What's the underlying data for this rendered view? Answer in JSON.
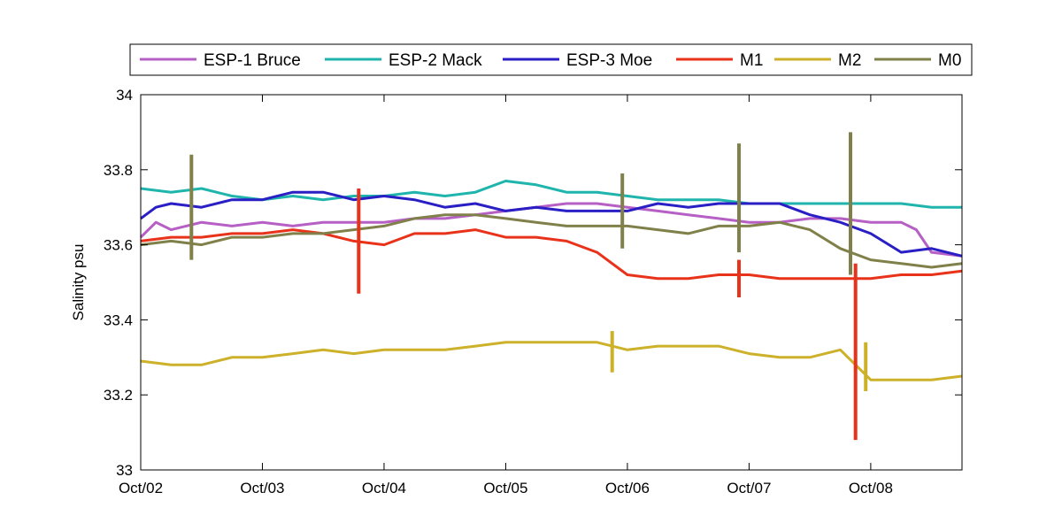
{
  "chart_data": {
    "type": "line",
    "title": "",
    "xlabel": "",
    "ylabel": "Salinity psu",
    "ylim": [
      33,
      34
    ],
    "yticks": [
      33,
      33.2,
      33.4,
      33.6,
      33.8,
      34
    ],
    "ytick_labels": [
      "33",
      "33.2",
      "33.4",
      "33.6",
      "33.8",
      "34"
    ],
    "xlim": [
      "2000-10-02T00:00",
      "2000-10-08T18:00"
    ],
    "xtick_labels": [
      "Oct/02",
      "Oct/03",
      "Oct/04",
      "Oct/05",
      "Oct/06",
      "Oct/07",
      "Oct/08"
    ],
    "grid": false,
    "legend_position": "top, outside plot",
    "series": [
      {
        "name": "ESP-1 Bruce",
        "color": "#b65fc4",
        "points": [
          [
            "10-02 00:00",
            33.62
          ],
          [
            "10-02 03:00",
            33.66
          ],
          [
            "10-02 06:00",
            33.64
          ],
          [
            "10-02 12:00",
            33.66
          ],
          [
            "10-02 18:00",
            33.65
          ],
          [
            "10-03 00:00",
            33.66
          ],
          [
            "10-03 06:00",
            33.65
          ],
          [
            "10-03 12:00",
            33.66
          ],
          [
            "10-03 18:00",
            33.66
          ],
          [
            "10-04 00:00",
            33.66
          ],
          [
            "10-04 06:00",
            33.67
          ],
          [
            "10-04 12:00",
            33.67
          ],
          [
            "10-04 18:00",
            33.68
          ],
          [
            "10-05 00:00",
            33.69
          ],
          [
            "10-05 06:00",
            33.7
          ],
          [
            "10-05 12:00",
            33.71
          ],
          [
            "10-05 18:00",
            33.71
          ],
          [
            "10-06 00:00",
            33.7
          ],
          [
            "10-06 06:00",
            33.69
          ],
          [
            "10-06 12:00",
            33.68
          ],
          [
            "10-06 18:00",
            33.67
          ],
          [
            "10-07 00:00",
            33.66
          ],
          [
            "10-07 06:00",
            33.66
          ],
          [
            "10-07 12:00",
            33.67
          ],
          [
            "10-07 18:00",
            33.67
          ],
          [
            "10-08 00:00",
            33.66
          ],
          [
            "10-08 06:00",
            33.66
          ],
          [
            "10-08 09:00",
            33.64
          ],
          [
            "10-08 12:00",
            33.58
          ],
          [
            "10-08 18:00",
            33.57
          ]
        ]
      },
      {
        "name": "ESP-2 Mack",
        "color": "#1fb5ad",
        "points": [
          [
            "10-02 00:00",
            33.75
          ],
          [
            "10-02 06:00",
            33.74
          ],
          [
            "10-02 12:00",
            33.75
          ],
          [
            "10-02 18:00",
            33.73
          ],
          [
            "10-03 00:00",
            33.72
          ],
          [
            "10-03 06:00",
            33.73
          ],
          [
            "10-03 12:00",
            33.72
          ],
          [
            "10-03 18:00",
            33.73
          ],
          [
            "10-04 00:00",
            33.73
          ],
          [
            "10-04 06:00",
            33.74
          ],
          [
            "10-04 12:00",
            33.73
          ],
          [
            "10-04 18:00",
            33.74
          ],
          [
            "10-05 00:00",
            33.77
          ],
          [
            "10-05 06:00",
            33.76
          ],
          [
            "10-05 12:00",
            33.74
          ],
          [
            "10-05 18:00",
            33.74
          ],
          [
            "10-06 00:00",
            33.73
          ],
          [
            "10-06 06:00",
            33.72
          ],
          [
            "10-06 12:00",
            33.72
          ],
          [
            "10-06 18:00",
            33.72
          ],
          [
            "10-07 00:00",
            33.71
          ],
          [
            "10-07 06:00",
            33.71
          ],
          [
            "10-07 12:00",
            33.71
          ],
          [
            "10-07 18:00",
            33.71
          ],
          [
            "10-08 00:00",
            33.71
          ],
          [
            "10-08 06:00",
            33.71
          ],
          [
            "10-08 12:00",
            33.7
          ],
          [
            "10-08 18:00",
            33.7
          ]
        ]
      },
      {
        "name": "ESP-3 Moe",
        "color": "#2a1fc4",
        "points": [
          [
            "10-02 00:00",
            33.67
          ],
          [
            "10-02 03:00",
            33.7
          ],
          [
            "10-02 06:00",
            33.71
          ],
          [
            "10-02 12:00",
            33.7
          ],
          [
            "10-02 18:00",
            33.72
          ],
          [
            "10-03 00:00",
            33.72
          ],
          [
            "10-03 06:00",
            33.74
          ],
          [
            "10-03 12:00",
            33.74
          ],
          [
            "10-03 18:00",
            33.72
          ],
          [
            "10-04 00:00",
            33.73
          ],
          [
            "10-04 06:00",
            33.72
          ],
          [
            "10-04 12:00",
            33.7
          ],
          [
            "10-04 18:00",
            33.71
          ],
          [
            "10-05 00:00",
            33.69
          ],
          [
            "10-05 06:00",
            33.7
          ],
          [
            "10-05 12:00",
            33.69
          ],
          [
            "10-05 18:00",
            33.69
          ],
          [
            "10-06 00:00",
            33.69
          ],
          [
            "10-06 06:00",
            33.71
          ],
          [
            "10-06 12:00",
            33.7
          ],
          [
            "10-06 18:00",
            33.71
          ],
          [
            "10-07 00:00",
            33.71
          ],
          [
            "10-07 06:00",
            33.71
          ],
          [
            "10-07 12:00",
            33.68
          ],
          [
            "10-07 18:00",
            33.66
          ],
          [
            "10-08 00:00",
            33.63
          ],
          [
            "10-08 06:00",
            33.58
          ],
          [
            "10-08 12:00",
            33.59
          ],
          [
            "10-08 18:00",
            33.57
          ]
        ]
      },
      {
        "name": "M1",
        "color": "#e8321a",
        "points": [
          [
            "10-02 00:00",
            33.61
          ],
          [
            "10-02 06:00",
            33.62
          ],
          [
            "10-02 12:00",
            33.62
          ],
          [
            "10-02 18:00",
            33.63
          ],
          [
            "10-03 00:00",
            33.63
          ],
          [
            "10-03 06:00",
            33.64
          ],
          [
            "10-03 12:00",
            33.63
          ],
          [
            "10-03 18:00",
            33.61
          ],
          [
            "10-04 00:00",
            33.6
          ],
          [
            "10-04 06:00",
            33.63
          ],
          [
            "10-04 12:00",
            33.63
          ],
          [
            "10-04 18:00",
            33.64
          ],
          [
            "10-05 00:00",
            33.62
          ],
          [
            "10-05 06:00",
            33.62
          ],
          [
            "10-05 12:00",
            33.61
          ],
          [
            "10-05 18:00",
            33.58
          ],
          [
            "10-06 00:00",
            33.52
          ],
          [
            "10-06 06:00",
            33.51
          ],
          [
            "10-06 12:00",
            33.51
          ],
          [
            "10-06 18:00",
            33.52
          ],
          [
            "10-07 00:00",
            33.52
          ],
          [
            "10-07 06:00",
            33.51
          ],
          [
            "10-07 12:00",
            33.51
          ],
          [
            "10-07 18:00",
            33.51
          ],
          [
            "10-08 00:00",
            33.51
          ],
          [
            "10-08 06:00",
            33.52
          ],
          [
            "10-08 12:00",
            33.52
          ],
          [
            "10-08 18:00",
            33.53
          ]
        ]
      },
      {
        "name": "M2",
        "color": "#cdb12a",
        "points": [
          [
            "10-02 00:00",
            33.29
          ],
          [
            "10-02 06:00",
            33.28
          ],
          [
            "10-02 12:00",
            33.28
          ],
          [
            "10-02 18:00",
            33.3
          ],
          [
            "10-03 00:00",
            33.3
          ],
          [
            "10-03 06:00",
            33.31
          ],
          [
            "10-03 12:00",
            33.32
          ],
          [
            "10-03 18:00",
            33.31
          ],
          [
            "10-04 00:00",
            33.32
          ],
          [
            "10-04 06:00",
            33.32
          ],
          [
            "10-04 12:00",
            33.32
          ],
          [
            "10-04 18:00",
            33.33
          ],
          [
            "10-05 00:00",
            33.34
          ],
          [
            "10-05 06:00",
            33.34
          ],
          [
            "10-05 12:00",
            33.34
          ],
          [
            "10-05 18:00",
            33.34
          ],
          [
            "10-06 00:00",
            33.32
          ],
          [
            "10-06 06:00",
            33.33
          ],
          [
            "10-06 12:00",
            33.33
          ],
          [
            "10-06 18:00",
            33.33
          ],
          [
            "10-07 00:00",
            33.31
          ],
          [
            "10-07 06:00",
            33.3
          ],
          [
            "10-07 12:00",
            33.3
          ],
          [
            "10-07 18:00",
            33.32
          ],
          [
            "10-08 00:00",
            33.24
          ],
          [
            "10-08 06:00",
            33.24
          ],
          [
            "10-08 12:00",
            33.24
          ],
          [
            "10-08 18:00",
            33.25
          ]
        ]
      },
      {
        "name": "M0",
        "color": "#80804a",
        "points": [
          [
            "10-02 00:00",
            33.6
          ],
          [
            "10-02 06:00",
            33.61
          ],
          [
            "10-02 12:00",
            33.6
          ],
          [
            "10-02 18:00",
            33.62
          ],
          [
            "10-03 00:00",
            33.62
          ],
          [
            "10-03 06:00",
            33.63
          ],
          [
            "10-03 12:00",
            33.63
          ],
          [
            "10-03 18:00",
            33.64
          ],
          [
            "10-04 00:00",
            33.65
          ],
          [
            "10-04 06:00",
            33.67
          ],
          [
            "10-04 12:00",
            33.68
          ],
          [
            "10-04 18:00",
            33.68
          ],
          [
            "10-05 00:00",
            33.67
          ],
          [
            "10-05 06:00",
            33.66
          ],
          [
            "10-05 12:00",
            33.65
          ],
          [
            "10-05 18:00",
            33.65
          ],
          [
            "10-06 00:00",
            33.65
          ],
          [
            "10-06 06:00",
            33.64
          ],
          [
            "10-06 12:00",
            33.63
          ],
          [
            "10-06 18:00",
            33.65
          ],
          [
            "10-07 00:00",
            33.65
          ],
          [
            "10-07 06:00",
            33.66
          ],
          [
            "10-07 12:00",
            33.64
          ],
          [
            "10-07 18:00",
            33.59
          ],
          [
            "10-08 00:00",
            33.56
          ],
          [
            "10-08 06:00",
            33.55
          ],
          [
            "10-08 12:00",
            33.54
          ],
          [
            "10-08 18:00",
            33.55
          ]
        ]
      }
    ],
    "spikes": [
      {
        "series": "M0",
        "at": "10-02 10:00",
        "min": 33.56,
        "max": 33.84
      },
      {
        "series": "M0",
        "at": "10-05 23:00",
        "min": 33.59,
        "max": 33.79
      },
      {
        "series": "M0",
        "at": "10-06 22:00",
        "min": 33.58,
        "max": 33.87
      },
      {
        "series": "M0",
        "at": "10-07 20:00",
        "min": 33.52,
        "max": 33.9
      },
      {
        "series": "M1",
        "at": "10-03 19:00",
        "min": 33.47,
        "max": 33.75
      },
      {
        "series": "M1",
        "at": "10-06 22:00",
        "min": 33.46,
        "max": 33.56
      },
      {
        "series": "M1",
        "at": "10-07 21:00",
        "min": 33.08,
        "max": 33.55
      },
      {
        "series": "M2",
        "at": "10-05 21:00",
        "min": 33.26,
        "max": 33.37
      },
      {
        "series": "M2",
        "at": "10-07 23:00",
        "min": 33.21,
        "max": 33.34
      }
    ]
  }
}
